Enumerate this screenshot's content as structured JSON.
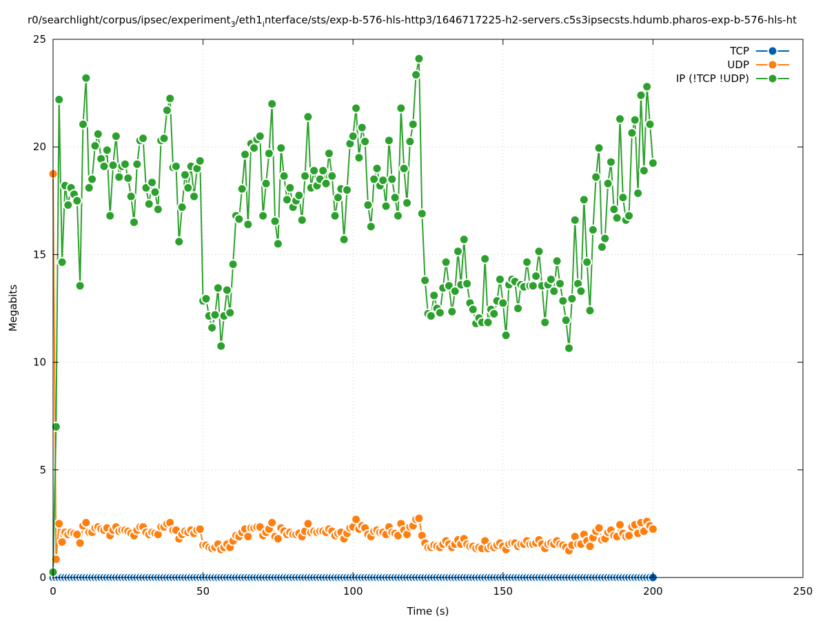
{
  "chart_data": {
    "type": "line",
    "title_parts": [
      {
        "text": "r0/searchlight/corpus/ipsec/experiment"
      },
      {
        "text": "3",
        "sub": true
      },
      {
        "text": "/eth1"
      },
      {
        "text": "i",
        "sub": true
      },
      {
        "text": "nterface/sts/exp-b-576-hls-http3/1646717225-h2-servers.c5s3ipsecsts.hdumb.pharos-exp-b-576-hls-ht"
      }
    ],
    "xlabel": "Time (s)",
    "ylabel": "Megabits",
    "xlim": [
      0,
      250
    ],
    "ylim": [
      0,
      25
    ],
    "xticks": [
      0,
      50,
      100,
      150,
      200,
      250
    ],
    "yticks": [
      0,
      5,
      10,
      15,
      20,
      25
    ],
    "grid": true,
    "legend_position": "top-right",
    "x_start": 0,
    "x_step": 1,
    "series": [
      {
        "name": "TCP",
        "color": "#0060ad",
        "values": [
          0,
          0,
          0,
          0,
          0,
          0,
          0,
          0,
          0,
          0,
          0,
          0,
          0,
          0,
          0,
          0,
          0,
          0,
          0,
          0,
          0,
          0,
          0,
          0,
          0,
          0,
          0,
          0,
          0,
          0,
          0,
          0,
          0,
          0,
          0,
          0,
          0,
          0,
          0,
          0,
          0,
          0,
          0,
          0,
          0,
          0,
          0,
          0,
          0,
          0,
          0,
          0,
          0,
          0,
          0,
          0,
          0,
          0,
          0,
          0,
          0,
          0,
          0,
          0,
          0,
          0,
          0,
          0,
          0,
          0,
          0,
          0,
          0,
          0,
          0,
          0,
          0,
          0,
          0,
          0,
          0,
          0,
          0,
          0,
          0,
          0,
          0,
          0,
          0,
          0,
          0,
          0,
          0,
          0,
          0,
          0,
          0,
          0,
          0,
          0,
          0,
          0,
          0,
          0,
          0,
          0,
          0,
          0,
          0,
          0,
          0,
          0,
          0,
          0,
          0,
          0,
          0,
          0,
          0,
          0,
          0,
          0,
          0,
          0,
          0,
          0,
          0,
          0,
          0,
          0,
          0,
          0,
          0,
          0,
          0,
          0,
          0,
          0,
          0,
          0,
          0,
          0,
          0,
          0,
          0,
          0,
          0,
          0,
          0,
          0,
          0,
          0,
          0,
          0,
          0,
          0,
          0,
          0,
          0,
          0,
          0,
          0,
          0,
          0,
          0,
          0,
          0,
          0,
          0,
          0,
          0,
          0,
          0,
          0,
          0,
          0,
          0,
          0,
          0,
          0,
          0,
          0,
          0,
          0,
          0,
          0,
          0,
          0,
          0,
          0,
          0,
          0,
          0,
          0,
          0,
          0,
          0,
          0,
          0,
          0,
          0
        ]
      },
      {
        "name": "UDP",
        "color": "#ff7f0e",
        "values": [
          18.75,
          0.85,
          2.5,
          1.65,
          2.1,
          2.0,
          2.1,
          2.05,
          2.0,
          1.6,
          2.4,
          2.55,
          2.1,
          2.1,
          2.3,
          2.35,
          2.25,
          2.2,
          2.3,
          1.95,
          2.2,
          2.35,
          2.15,
          2.2,
          2.2,
          2.15,
          2.05,
          1.95,
          2.2,
          2.35,
          2.35,
          2.1,
          2.0,
          2.1,
          2.05,
          2.0,
          2.35,
          2.35,
          2.5,
          2.55,
          2.2,
          2.2,
          1.8,
          2.0,
          2.15,
          2.1,
          2.2,
          2.05,
          2.2,
          2.25,
          1.5,
          1.5,
          1.4,
          1.35,
          1.4,
          1.55,
          1.3,
          1.4,
          1.55,
          1.4,
          1.7,
          1.95,
          1.9,
          2.1,
          2.25,
          1.9,
          2.3,
          2.3,
          2.35,
          2.35,
          1.95,
          2.1,
          2.25,
          2.55,
          1.9,
          1.8,
          2.3,
          2.15,
          2.0,
          2.1,
          2.0,
          2.0,
          2.05,
          1.9,
          2.15,
          2.5,
          2.1,
          2.15,
          2.1,
          2.15,
          2.15,
          2.1,
          2.25,
          2.15,
          1.95,
          2.05,
          2.1,
          1.8,
          2.05,
          2.3,
          2.35,
          2.7,
          2.25,
          2.4,
          2.3,
          2.0,
          1.9,
          2.15,
          2.2,
          2.1,
          2.1,
          2.0,
          2.35,
          2.1,
          2.05,
          1.95,
          2.5,
          2.2,
          2.0,
          2.35,
          2.4,
          2.7,
          2.75,
          1.95,
          1.6,
          1.4,
          1.4,
          1.5,
          1.45,
          1.4,
          1.55,
          1.7,
          1.55,
          1.4,
          1.55,
          1.75,
          1.55,
          1.8,
          1.55,
          1.45,
          1.45,
          1.35,
          1.4,
          1.35,
          1.7,
          1.35,
          1.45,
          1.4,
          1.5,
          1.6,
          1.45,
          1.3,
          1.55,
          1.6,
          1.6,
          1.45,
          1.55,
          1.55,
          1.7,
          1.55,
          1.55,
          1.6,
          1.75,
          1.55,
          1.35,
          1.55,
          1.6,
          1.55,
          1.7,
          1.55,
          1.5,
          1.4,
          1.25,
          1.5,
          1.9,
          1.55,
          1.55,
          2.0,
          1.7,
          1.45,
          1.85,
          2.15,
          2.3,
          1.75,
          1.8,
          2.1,
          2.2,
          1.95,
          1.9,
          2.45,
          2.05,
          1.9,
          1.95,
          2.35,
          2.45,
          2.05,
          2.55,
          2.15,
          2.6,
          2.4,
          2.25
        ]
      },
      {
        "name": "IP (!TCP  !UDP)",
        "color": "#2ca02c",
        "values": [
          0.25,
          7.0,
          22.2,
          14.65,
          18.2,
          17.3,
          18.1,
          17.8,
          17.5,
          13.55,
          21.05,
          23.2,
          18.1,
          18.5,
          20.05,
          20.6,
          19.45,
          19.1,
          19.85,
          16.8,
          19.15,
          20.5,
          18.6,
          19.1,
          19.2,
          18.55,
          17.7,
          16.5,
          19.2,
          20.3,
          20.4,
          18.1,
          17.35,
          18.35,
          17.9,
          17.1,
          20.3,
          20.4,
          21.7,
          22.25,
          19.05,
          19.1,
          15.6,
          17.2,
          18.7,
          18.1,
          19.1,
          17.7,
          19.0,
          19.35,
          12.85,
          12.95,
          12.15,
          11.6,
          12.2,
          13.45,
          10.75,
          12.15,
          13.35,
          12.3,
          14.55,
          16.8,
          16.65,
          18.05,
          19.65,
          16.4,
          20.15,
          19.95,
          20.35,
          20.5,
          16.8,
          18.3,
          19.7,
          22.0,
          16.55,
          15.5,
          19.95,
          18.65,
          17.55,
          18.1,
          17.2,
          17.5,
          17.75,
          16.6,
          18.65,
          21.4,
          18.1,
          18.9,
          18.2,
          18.5,
          18.9,
          18.3,
          19.7,
          18.65,
          16.8,
          17.65,
          18.05,
          15.7,
          18.0,
          20.15,
          20.5,
          21.8,
          19.5,
          20.9,
          20.25,
          17.3,
          16.3,
          18.5,
          19.0,
          18.2,
          18.45,
          17.25,
          20.3,
          18.5,
          17.65,
          16.8,
          21.8,
          19.0,
          17.4,
          20.25,
          21.05,
          23.35,
          24.1,
          16.9,
          13.8,
          12.25,
          12.15,
          13.1,
          12.5,
          12.3,
          13.45,
          14.65,
          13.55,
          12.35,
          13.3,
          15.15,
          13.6,
          15.7,
          13.65,
          12.75,
          12.45,
          11.8,
          12.05,
          11.85,
          14.8,
          11.85,
          12.45,
          12.25,
          12.85,
          13.85,
          12.75,
          11.25,
          13.6,
          13.85,
          13.75,
          12.5,
          13.6,
          13.5,
          14.65,
          13.55,
          13.55,
          14.0,
          15.15,
          13.55,
          11.85,
          13.6,
          13.85,
          13.3,
          14.7,
          13.65,
          12.85,
          11.95,
          10.65,
          12.95,
          16.6,
          13.65,
          13.3,
          17.55,
          14.65,
          12.4,
          16.15,
          18.6,
          19.95,
          15.35,
          15.75,
          18.3,
          19.3,
          17.1,
          16.7,
          21.3,
          17.65,
          16.6,
          16.8,
          20.65,
          21.25,
          17.85,
          22.4,
          18.9,
          22.8,
          21.05,
          19.25
        ]
      }
    ]
  }
}
